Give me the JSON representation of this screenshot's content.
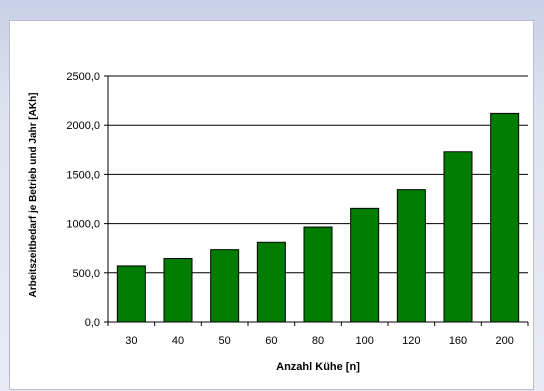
{
  "chart_data": {
    "type": "bar",
    "title": "",
    "xlabel": "Anzahl Kühe [n]",
    "ylabel": "Arbeitszeitbedarf je Betrieb und Jahr [AKh]",
    "categories": [
      "30",
      "40",
      "50",
      "60",
      "80",
      "100",
      "120",
      "160",
      "200"
    ],
    "values": [
      570,
      645,
      735,
      810,
      965,
      1155,
      1345,
      1730,
      2120
    ],
    "ylim": [
      0,
      2500
    ],
    "yticks": [
      0,
      500,
      1000,
      1500,
      2000,
      2500
    ],
    "ytick_labels": [
      "0,0",
      "500,0",
      "1000,0",
      "1500,0",
      "2000,0",
      "2500,0"
    ],
    "grid": true,
    "legend": "none",
    "bar_color": "#007d00",
    "bar_outline": "#000000"
  }
}
